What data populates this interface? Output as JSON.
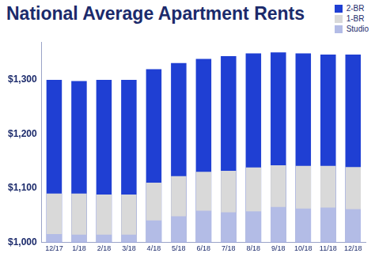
{
  "chart_data": {
    "type": "bar",
    "title": "National Average Apartment Rents",
    "categories": [
      "12/17",
      "1/18",
      "2/18",
      "3/18",
      "4/18",
      "5/18",
      "6/18",
      "7/18",
      "8/18",
      "9/18",
      "10/18",
      "11/18",
      "12/18"
    ],
    "series": [
      {
        "name": "2-BR",
        "color": "#1f3fd3",
        "values": [
          1300,
          1298,
          1300,
          1300,
          1320,
          1331,
          1339,
          1344,
          1349,
          1351,
          1349,
          1347,
          1347
        ]
      },
      {
        "name": "1-BR",
        "color": "#d9d9d9",
        "values": [
          1090,
          1090,
          1088,
          1088,
          1110,
          1122,
          1130,
          1132,
          1138,
          1142,
          1141,
          1141,
          1139
        ]
      },
      {
        "name": "Studio",
        "color": "#b3bce6",
        "values": [
          1015,
          1014,
          1014,
          1014,
          1040,
          1048,
          1058,
          1055,
          1057,
          1065,
          1062,
          1064,
          1061
        ]
      }
    ],
    "ylim": [
      1000,
      1370
    ],
    "yticks": [
      {
        "value": 1000,
        "label": "$1,000"
      },
      {
        "value": 1100,
        "label": "$1,100"
      },
      {
        "value": 1200,
        "label": "$1,200"
      },
      {
        "value": 1300,
        "label": "$1,300"
      }
    ],
    "grid": false,
    "legend": "top-right"
  }
}
